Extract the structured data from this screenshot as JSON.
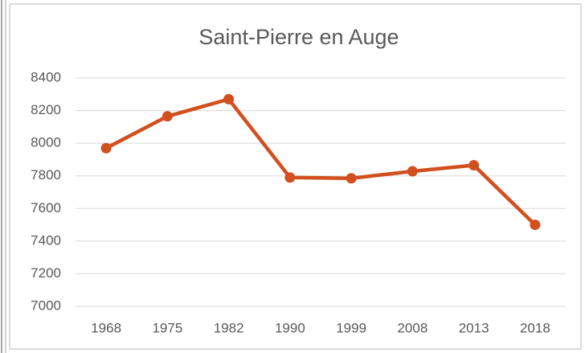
{
  "chart_data": {
    "type": "line",
    "title": "Saint-Pierre en Auge",
    "categories": [
      "1968",
      "1975",
      "1982",
      "1990",
      "1999",
      "2008",
      "2013",
      "2018"
    ],
    "series": [
      {
        "name": "Saint-Pierre en Auge",
        "color": "#d24f1e",
        "values": [
          7970,
          8165,
          8270,
          7790,
          7785,
          7828,
          7865,
          7500
        ]
      }
    ],
    "ylim": [
      7000,
      8400
    ],
    "yticks": [
      7000,
      7200,
      7400,
      7600,
      7800,
      8000,
      8200,
      8400
    ],
    "grid": true
  }
}
